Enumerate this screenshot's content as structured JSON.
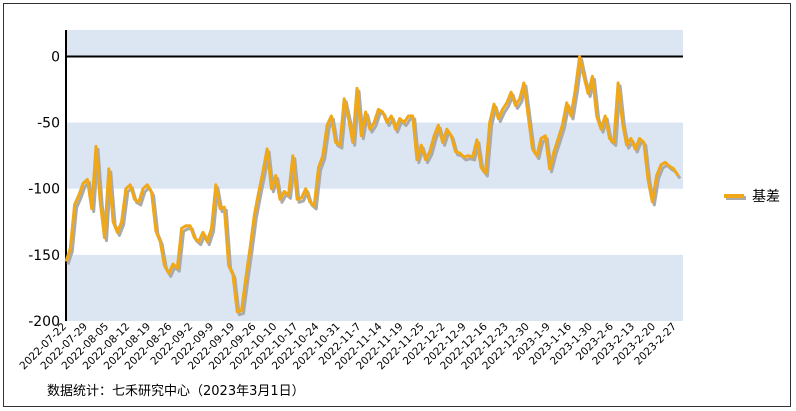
{
  "chart_data": {
    "type": "line",
    "title": "",
    "xlabel": "",
    "ylabel": "",
    "ylim": [
      -200,
      20
    ],
    "y_ticks": [
      0,
      -50,
      -100,
      -150,
      -200
    ],
    "x_ticks": [
      "2022-07-22",
      "2022-07-29",
      "2022-08-05",
      "2022-08-12",
      "2022-08-19",
      "2022-08-26",
      "2022-09-2",
      "2022-09-9",
      "2022-09-19",
      "2022-09-26",
      "2022-10-10",
      "2022-10-17",
      "2022-10-24",
      "2022-10-31",
      "2022-11-7",
      "2022-11-14",
      "2022-11-19",
      "2022-11-25",
      "2022-12-2",
      "2022-12-9",
      "2022-12-16",
      "2022-12-23",
      "2022-12-30",
      "2023-1-9",
      "2023-1-16",
      "2023-1-30",
      "2023-2-6",
      "2023-2-13",
      "2023-2-20",
      "2023-2-27"
    ],
    "legend_position": "right",
    "band_color": "#dce6f2",
    "series": [
      {
        "name": "基差",
        "color": "#f0a818",
        "shadow_color": "#aaaaaa",
        "values": [
          -155,
          -145,
          -112,
          -105,
          -96,
          -93,
          -115,
          -68,
          -110,
          -137,
          -85,
          -125,
          -133,
          -125,
          -100,
          -97,
          -108,
          -110,
          -100,
          -97,
          -103,
          -132,
          -140,
          -158,
          -164,
          -157,
          -160,
          -130,
          -128,
          -128,
          -137,
          -140,
          -133,
          -140,
          -130,
          -97,
          -115,
          -114,
          -158,
          -165,
          -193,
          -192,
          -168,
          -145,
          -120,
          -103,
          -87,
          -70,
          -100,
          -90,
          -108,
          -102,
          -105,
          -75,
          -108,
          -107,
          -100,
          -110,
          -113,
          -84,
          -75,
          -52,
          -45,
          -65,
          -67,
          -32,
          -47,
          -65,
          -24,
          -60,
          -42,
          -55,
          -50,
          -40,
          -42,
          -50,
          -45,
          -55,
          -47,
          -50,
          -45,
          -45,
          -78,
          -67,
          -78,
          -72,
          -60,
          -52,
          -65,
          -55,
          -60,
          -72,
          -73,
          -76,
          -75,
          -76,
          -63,
          -84,
          -88,
          -50,
          -36,
          -47,
          -40,
          -35,
          -27,
          -37,
          -32,
          -20,
          -45,
          -70,
          -75,
          -62,
          -60,
          -85,
          -72,
          -62,
          -52,
          -35,
          -45,
          -25,
          0,
          -15,
          -28,
          -15,
          -45,
          -55,
          -45,
          -62,
          -65,
          -20,
          -50,
          -67,
          -62,
          -70,
          -62,
          -65,
          -93,
          -110,
          -90,
          -82,
          -80,
          -83,
          -85,
          -90
        ]
      }
    ]
  },
  "footer": {
    "source_text": "数据统计：七禾研究中心（2023年3月1日）"
  }
}
